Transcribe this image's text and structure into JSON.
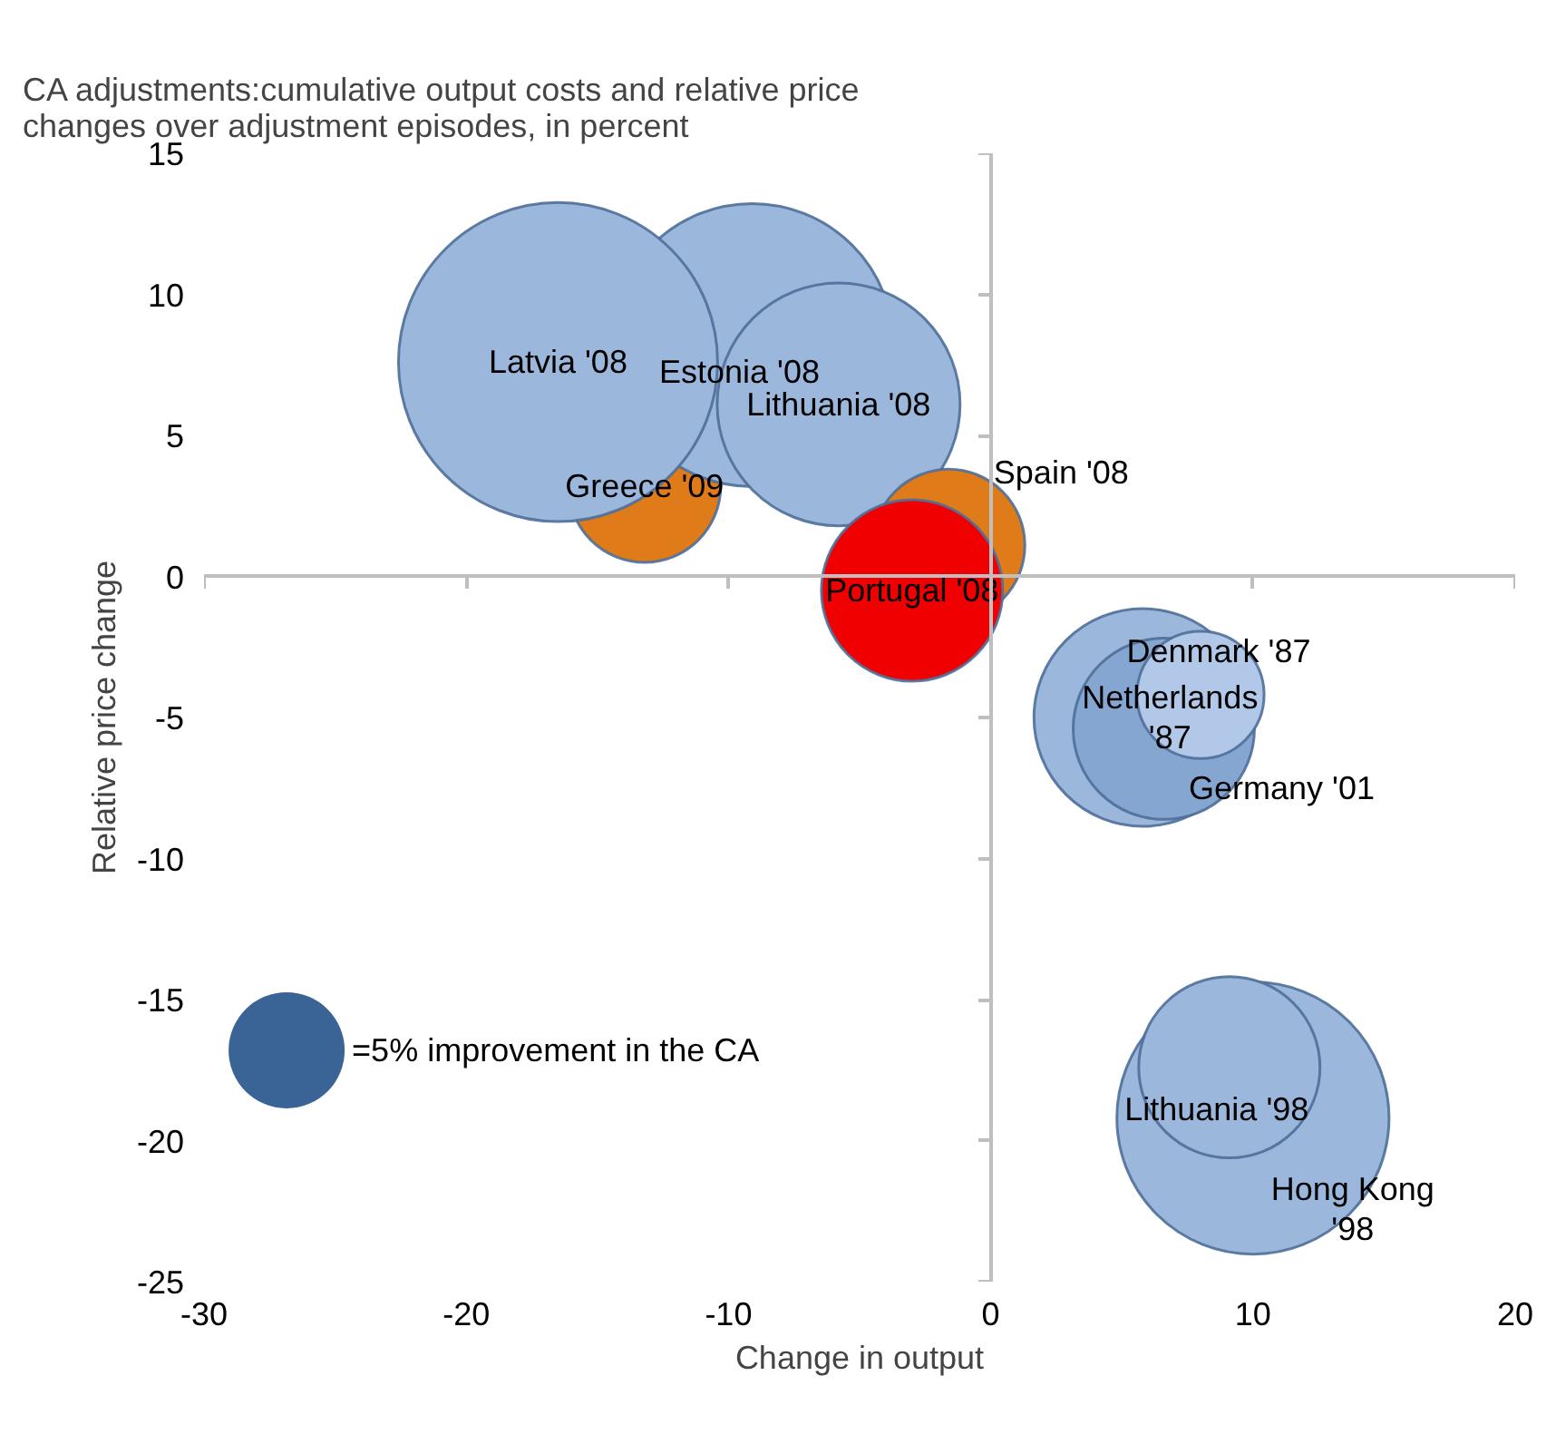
{
  "chart_data": {
    "type": "bubble",
    "title": "CA adjustments:cumulative  output costs and relative price\nchanges over adjustment episodes, in percent",
    "xlabel": "Change in output",
    "ylabel": "Relative price change",
    "xlim": [
      -30,
      20
    ],
    "xticks": [
      -30,
      -20,
      -10,
      0,
      10,
      20
    ],
    "ylim": [
      -25,
      15
    ],
    "yticks": [
      -25,
      -20,
      -15,
      -10,
      -5,
      0,
      5,
      10,
      15
    ],
    "size_legend": [
      {
        "value": 5,
        "label": "=5% improvement in the CA"
      }
    ],
    "series": [
      {
        "name": "Greece '09",
        "color": "#e07b1a",
        "x": [
          -13.2
        ],
        "values": [
          3.2
        ],
        "sizes": [
          8.6
        ]
      },
      {
        "name": "Estonia '08",
        "color": "#9bb7dc",
        "x": [
          -9.1
        ],
        "values": [
          8.2
        ],
        "sizes": [
          29.7
        ]
      },
      {
        "name": "Lithuania '08",
        "color": "#9bb7dc",
        "x": [
          -5.8
        ],
        "values": [
          6.1
        ],
        "sizes": [
          21.9
        ]
      },
      {
        "name": "Latvia '08",
        "color": "#9bb7dc",
        "x": [
          -16.5
        ],
        "values": [
          7.6
        ],
        "sizes": [
          37.8
        ]
      },
      {
        "name": "Spain '08",
        "color": "#e07b1a",
        "x": [
          -1.6
        ],
        "values": [
          1.1
        ],
        "sizes": [
          8.6
        ]
      },
      {
        "name": "Portugal '08",
        "color": "#f00000",
        "x": [
          -3.0
        ],
        "values": [
          -0.5
        ],
        "sizes": [
          12.2
        ]
      },
      {
        "name": "Netherlands\n'87",
        "color": "#9bb7dc",
        "x": [
          5.8
        ],
        "values": [
          -5.0
        ],
        "sizes": [
          17.6
        ]
      },
      {
        "name": "Germany '01",
        "color": "#86a6d2",
        "x": [
          6.6
        ],
        "values": [
          -5.4
        ],
        "sizes": [
          12.2
        ]
      },
      {
        "name": "Denmark '87",
        "color": "#b1c8e8",
        "x": [
          8.0
        ],
        "values": [
          -4.2
        ],
        "sizes": [
          6.0
        ]
      },
      {
        "name": "Hong Kong\n'98",
        "color": "#9bb7dc",
        "x": [
          10.0
        ],
        "values": [
          -19.2
        ],
        "sizes": [
          27.5
        ]
      },
      {
        "name": "Lithuania '98",
        "color": "#9bb7dc",
        "x": [
          9.1
        ],
        "values": [
          -17.4
        ],
        "sizes": [
          12.2
        ]
      }
    ]
  }
}
